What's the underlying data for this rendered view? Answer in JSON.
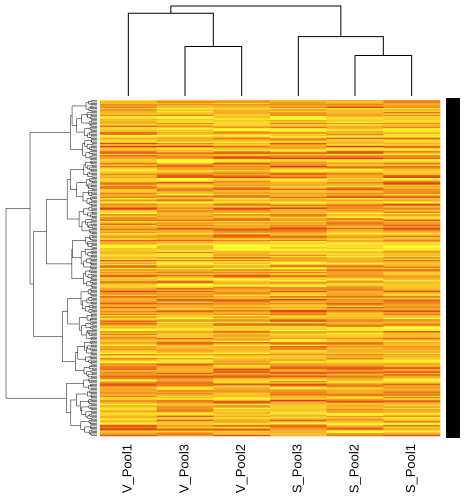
{
  "chart_data": {
    "type": "heatmap",
    "columns": [
      "V_Pool1",
      "V_Pool3",
      "V_Pool2",
      "S_Pool3",
      "S_Pool2",
      "S_Pool1"
    ],
    "column_dendrogram": {
      "merges": [
        {
          "left": "V_Pool3",
          "right": "V_Pool2",
          "height": 0.55
        },
        {
          "left": "V_Pool1",
          "right": "cluster(V_Pool3,V_Pool2)",
          "height": 0.92
        },
        {
          "left": "S_Pool2",
          "right": "S_Pool1",
          "height": 0.45
        },
        {
          "left": "S_Pool3",
          "right": "cluster(S_Pool2,S_Pool1)",
          "height": 0.66
        },
        {
          "left": "cluster(V)",
          "right": "cluster(S)",
          "height": 1.0
        }
      ]
    },
    "row_dendrogram": true,
    "row_side_colors": [
      "#000000"
    ],
    "color_scale": {
      "low": "#e02a14",
      "mid": "#f5a623",
      "high": "#ffff2e"
    },
    "value_range": [
      0,
      1
    ],
    "row_count": 250,
    "grid": false
  }
}
